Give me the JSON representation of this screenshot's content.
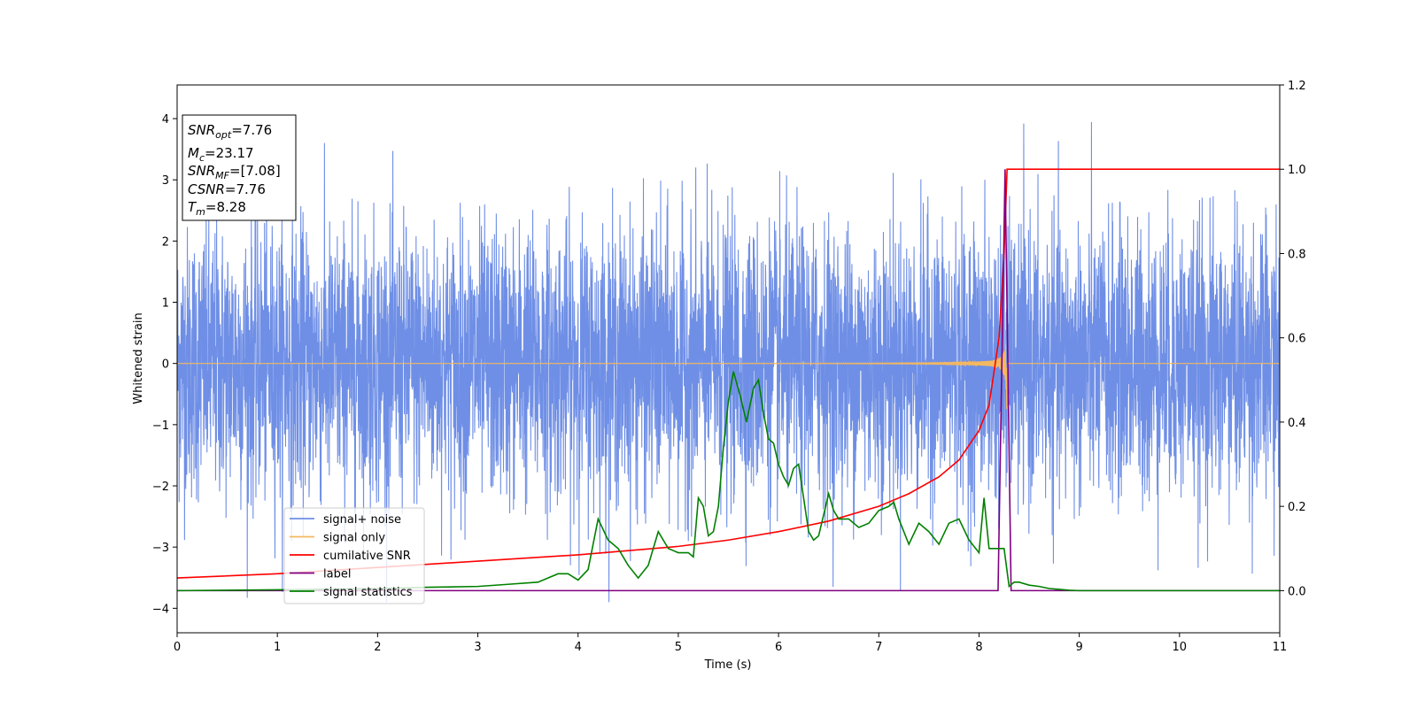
{
  "chart_data": {
    "type": "line",
    "xlabel": "Time (s)",
    "ylabel": "Whitened strain",
    "xlim": [
      0,
      11
    ],
    "ylim_left": [
      -4.4,
      4.55
    ],
    "ylim_right": [
      -0.1,
      1.2
    ],
    "x_ticks": [
      "0",
      "1",
      "2",
      "3",
      "4",
      "5",
      "6",
      "7",
      "8",
      "9",
      "10",
      "11"
    ],
    "y_left_ticks": [
      "−4",
      "−3",
      "−2",
      "−1",
      "0",
      "1",
      "2",
      "3",
      "4"
    ],
    "y_right_ticks": [
      "0.0",
      "0.2",
      "0.4",
      "0.6",
      "0.8",
      "1.0",
      "1.2"
    ],
    "legend_placement": "lower-left",
    "grid": false,
    "info_box": {
      "lines": [
        {
          "name": "SNR",
          "sub": "opt",
          "value": "=7.76"
        },
        {
          "name": "M",
          "sub": "c",
          "value": "=23.17"
        },
        {
          "name": "SNR",
          "sub": "MF",
          "value": "=[7.08]"
        },
        {
          "name": "CSNR",
          "sub": "",
          "value": "=7.76"
        },
        {
          "name": "T",
          "sub": "m",
          "value": "=8.28"
        }
      ]
    },
    "series": [
      {
        "name": "signal+ noise",
        "axis": "left",
        "color": "#6f8fe6",
        "noise_std": 1.1,
        "range_approx": [
          -3.9,
          4.15
        ]
      },
      {
        "name": "signal only",
        "axis": "left",
        "color": "#f4b860",
        "merger_time": 8.28,
        "peak_amplitude": 0.75
      },
      {
        "name": "cumilative SNR",
        "axis": "right",
        "color": "#ff0000",
        "x": [
          0,
          1,
          2,
          3,
          4,
          4.5,
          5,
          5.5,
          6,
          6.5,
          7,
          7.3,
          7.6,
          7.8,
          8.0,
          8.1,
          8.2,
          8.25,
          8.28,
          8.3,
          11
        ],
        "y": [
          0.03,
          0.04,
          0.055,
          0.07,
          0.085,
          0.095,
          0.105,
          0.12,
          0.14,
          0.165,
          0.2,
          0.23,
          0.27,
          0.31,
          0.38,
          0.44,
          0.6,
          0.8,
          1.0,
          1.0,
          1.0
        ]
      },
      {
        "name": "label",
        "axis": "right",
        "color": "#800080",
        "x": [
          0,
          8.19,
          8.26,
          8.32,
          11
        ],
        "y": [
          0,
          0,
          1,
          0,
          0
        ]
      },
      {
        "name": "signal statistics",
        "axis": "right",
        "color": "#008000",
        "x": [
          0,
          1,
          2,
          2.5,
          3,
          3.3,
          3.6,
          3.8,
          3.9,
          4.0,
          4.1,
          4.2,
          4.3,
          4.4,
          4.5,
          4.6,
          4.7,
          4.8,
          4.9,
          5.0,
          5.1,
          5.15,
          5.2,
          5.25,
          5.3,
          5.35,
          5.4,
          5.45,
          5.5,
          5.55,
          5.62,
          5.68,
          5.75,
          5.8,
          5.85,
          5.9,
          5.95,
          6.0,
          6.05,
          6.1,
          6.15,
          6.2,
          6.25,
          6.3,
          6.35,
          6.4,
          6.45,
          6.5,
          6.55,
          6.6,
          6.7,
          6.8,
          6.9,
          7.0,
          7.1,
          7.15,
          7.2,
          7.3,
          7.4,
          7.5,
          7.6,
          7.7,
          7.8,
          7.9,
          8.0,
          8.05,
          8.1,
          8.2,
          8.25,
          8.3,
          8.35,
          8.4,
          8.5,
          8.6,
          8.7,
          8.8,
          8.9,
          9.0,
          9.2,
          9.5,
          10,
          11
        ],
        "y": [
          0.0,
          0.002,
          0.005,
          0.008,
          0.01,
          0.015,
          0.02,
          0.04,
          0.04,
          0.025,
          0.05,
          0.17,
          0.12,
          0.1,
          0.06,
          0.03,
          0.06,
          0.14,
          0.1,
          0.09,
          0.09,
          0.08,
          0.22,
          0.2,
          0.13,
          0.14,
          0.2,
          0.34,
          0.45,
          0.52,
          0.46,
          0.4,
          0.48,
          0.5,
          0.42,
          0.36,
          0.35,
          0.3,
          0.27,
          0.25,
          0.29,
          0.3,
          0.22,
          0.14,
          0.12,
          0.13,
          0.18,
          0.23,
          0.19,
          0.17,
          0.17,
          0.15,
          0.16,
          0.19,
          0.2,
          0.21,
          0.17,
          0.11,
          0.16,
          0.14,
          0.11,
          0.16,
          0.17,
          0.12,
          0.09,
          0.22,
          0.1,
          0.1,
          0.1,
          0.01,
          0.02,
          0.02,
          0.013,
          0.01,
          0.005,
          0.003,
          0.001,
          0.0,
          0.0,
          0.0,
          0.0,
          0.0
        ]
      }
    ]
  }
}
